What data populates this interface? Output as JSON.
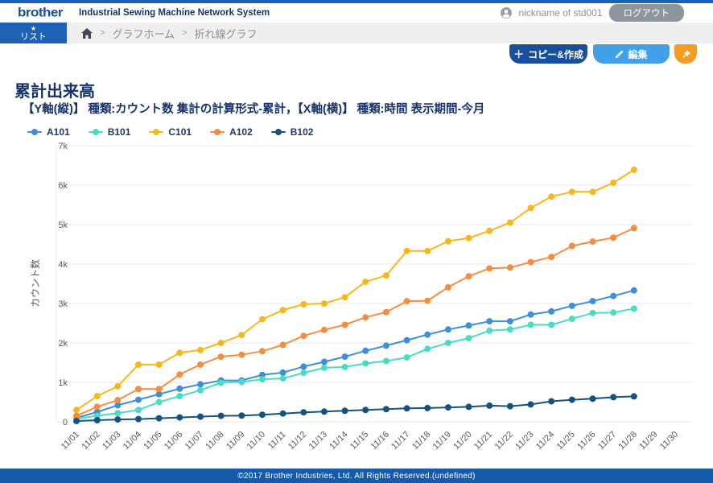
{
  "header": {
    "logo": "brother",
    "app_title": "Industrial Sewing Machine Network System",
    "user": {
      "icon": "user-icon",
      "nickname": "nickname of std001",
      "logout_label": "ログアウト"
    }
  },
  "nav": {
    "list_tab": {
      "icon": "star-icon",
      "star_glyph": "★",
      "label": "リスト"
    },
    "breadcrumb": {
      "home_icon": "home-icon",
      "separator": ">",
      "items": [
        "グラフホーム",
        "折れ線グラフ"
      ]
    }
  },
  "toolbar": {
    "copy_create_label": "コピー&作成",
    "plus_glyph": "＋",
    "edit_label": "編集",
    "edit_icon": "pencil-icon",
    "pin_icon": "pushpin-icon"
  },
  "page": {
    "title": "累計出来高",
    "subtitle": "【Y軸(縦)】 種類:カウント数 集計の計算形式-累計，【X軸(横)】 種類:時間 表示期間-今月"
  },
  "chart_data": {
    "type": "line",
    "title": "累計出来高",
    "ylabel": "カウント数",
    "xlabel": "",
    "ylim": [
      0,
      7000
    ],
    "yticks": [
      "0",
      "1k",
      "2k",
      "3k",
      "4k",
      "5k",
      "6k",
      "7k"
    ],
    "grid": "horizontal",
    "legend_position": "top-left",
    "x": [
      "11/01",
      "11/02",
      "11/03",
      "11/04",
      "11/05",
      "11/06",
      "11/07",
      "11/08",
      "11/09",
      "11/10",
      "11/11",
      "11/12",
      "11/13",
      "11/14",
      "11/15",
      "11/16",
      "11/17",
      "11/18",
      "11/19",
      "11/20",
      "11/21",
      "11/22",
      "11/23",
      "11/24",
      "11/25",
      "11/26",
      "11/27",
      "11/28",
      "11/29",
      "11/30"
    ],
    "series": [
      {
        "name": "A101",
        "color": "#3d8edb",
        "values": [
          100,
          250,
          420,
          560,
          700,
          840,
          950,
          1050,
          1050,
          1190,
          1250,
          1400,
          1520,
          1650,
          1800,
          1930,
          2070,
          2210,
          2340,
          2440,
          2550,
          2550,
          2720,
          2800,
          2940,
          3060,
          3190,
          3330
        ]
      },
      {
        "name": "B101",
        "color": "#4adcc3",
        "values": [
          80,
          150,
          220,
          300,
          500,
          650,
          800,
          990,
          1010,
          1080,
          1100,
          1240,
          1370,
          1390,
          1480,
          1540,
          1630,
          1850,
          2000,
          2120,
          2310,
          2340,
          2460,
          2460,
          2610,
          2760,
          2770,
          2870
        ]
      },
      {
        "name": "C101",
        "color": "#f7b71c",
        "values": [
          300,
          650,
          900,
          1450,
          1450,
          1750,
          1820,
          2000,
          2200,
          2600,
          2830,
          2980,
          3000,
          3160,
          3550,
          3710,
          4330,
          4330,
          4580,
          4660,
          4840,
          5050,
          5420,
          5710,
          5830,
          5830,
          6060,
          6390
        ]
      },
      {
        "name": "A102",
        "color": "#f58c3f",
        "values": [
          150,
          380,
          550,
          830,
          830,
          1200,
          1450,
          1650,
          1700,
          1790,
          1950,
          2180,
          2330,
          2460,
          2650,
          2780,
          3060,
          3070,
          3410,
          3690,
          3890,
          3910,
          4050,
          4180,
          4460,
          4570,
          4670,
          4910
        ]
      },
      {
        "name": "B102",
        "color": "#16527e",
        "values": [
          20,
          40,
          60,
          70,
          90,
          110,
          130,
          150,
          160,
          180,
          210,
          240,
          260,
          280,
          300,
          320,
          340,
          350,
          365,
          380,
          410,
          395,
          440,
          520,
          560,
          585,
          625,
          645
        ]
      }
    ],
    "colors": {
      "accent_blue": "#1d62b5",
      "dark_navy_text": "#17326b",
      "button_dark_blue": "#174f9c",
      "button_light_blue": "#41a0e8",
      "button_orange": "#f59b23",
      "footer_blue": "#175aa9"
    }
  },
  "footer": {
    "copyright": "©2017 Brother Industries, Ltd. All Rights Reserved.(undefined)"
  }
}
